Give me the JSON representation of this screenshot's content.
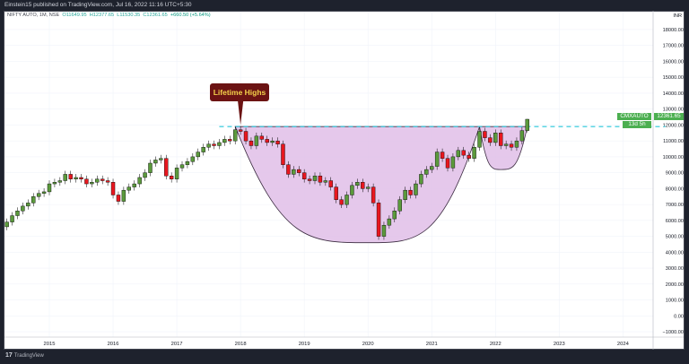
{
  "header": {
    "published": "Einstein15 published on TradingView.com, Jul 16, 2022 11:16 UTC+5:30"
  },
  "symbol": {
    "name": "NIFTY AUTO, 1M, NSE",
    "open": "O11649.95",
    "high": "H12377.65",
    "low": "L11530.35",
    "close": "C12361.65",
    "change": "+660.50 (+5.64%)"
  },
  "branding": {
    "logo": "TradingView",
    "logo_mark": "17"
  },
  "chart_data": {
    "type": "candlestick",
    "interval": "monthly",
    "start": "2014-05",
    "closes": [
      5900,
      6300,
      6600,
      6900,
      7100,
      7500,
      7700,
      7800,
      8300,
      8400,
      8500,
      8900,
      8600,
      8700,
      8600,
      8300,
      8400,
      8600,
      8500,
      8400,
      7600,
      7200,
      7900,
      8100,
      8300,
      8700,
      9000,
      9600,
      9800,
      9900,
      8800,
      8600,
      9300,
      9500,
      9700,
      10000,
      10300,
      10600,
      10800,
      10700,
      10900,
      11100,
      11000,
      11700,
      11600,
      11000,
      10700,
      11300,
      11100,
      10900,
      11000,
      10800,
      9500,
      8900,
      9200,
      9000,
      8600,
      8500,
      8800,
      8400,
      8500,
      8100,
      7300,
      7000,
      7600,
      8200,
      8400,
      8000,
      8100,
      7100,
      5000,
      5700,
      6100,
      6600,
      7300,
      7900,
      7600,
      8300,
      8900,
      9200,
      9400,
      10300,
      9900,
      9300,
      10000,
      10400,
      10100,
      9900,
      10600,
      11600,
      11200,
      10900,
      11500,
      10700,
      10800,
      10600,
      11000,
      11649.95,
      12361.65
    ],
    "last_candle": {
      "open": 11649.95,
      "high": 12377.65,
      "low": 11530.35,
      "close": 12361.65
    },
    "ylim": [
      -1000,
      19000
    ],
    "yticks": [
      18000,
      17000,
      16000,
      15000,
      14000,
      13000,
      12000,
      11000,
      10000,
      9000,
      8000,
      7000,
      6000,
      5000,
      4000,
      3000,
      2000,
      1000,
      0,
      -1000
    ],
    "ytick_labels": [
      "18000.00",
      "17000.00",
      "16000.00",
      "15000.00",
      "14000.00",
      "13000.00",
      "12000.00",
      "11000.00",
      "10000.00",
      "9000.00",
      "8000.00",
      "7000.00",
      "6000.00",
      "5000.00",
      "4000.00",
      "3000.00",
      "2000.00",
      "1000.00",
      "0.00",
      "−1000.00"
    ],
    "xticks": [
      "2015",
      "2016",
      "2017",
      "2018",
      "2019",
      "2020",
      "2021",
      "2022",
      "2023",
      "2024"
    ],
    "currency": "INR",
    "price_label": {
      "symbol": "CMXAUTO",
      "price": "12361.65",
      "countdown": "13d 5h"
    },
    "grid": true,
    "colors": {
      "up": "#5b9a3c",
      "down": "#e8171f",
      "outline": "#000000",
      "cup_fill": "#e1bee7",
      "cup_stroke": "#3b2b40",
      "level": "#26c6da",
      "badge": "#4caf50"
    },
    "annotations": {
      "callout": {
        "text": "Lifetime Highs",
        "date": "2018-01",
        "value": 12000
      },
      "resistance": {
        "value": 11900,
        "from": "2017-09",
        "to": "2024-09",
        "style": "dashed"
      },
      "cups": [
        {
          "start": [
            "2017-12",
            11900
          ],
          "bottom": [
            "2020-01",
            4600
          ],
          "end": [
            "2021-10",
            11900
          ]
        },
        {
          "start": [
            "2021-10",
            11900
          ],
          "bottom": [
            "2022-02",
            9200
          ],
          "end": [
            "2022-07",
            11900
          ]
        }
      ]
    }
  }
}
